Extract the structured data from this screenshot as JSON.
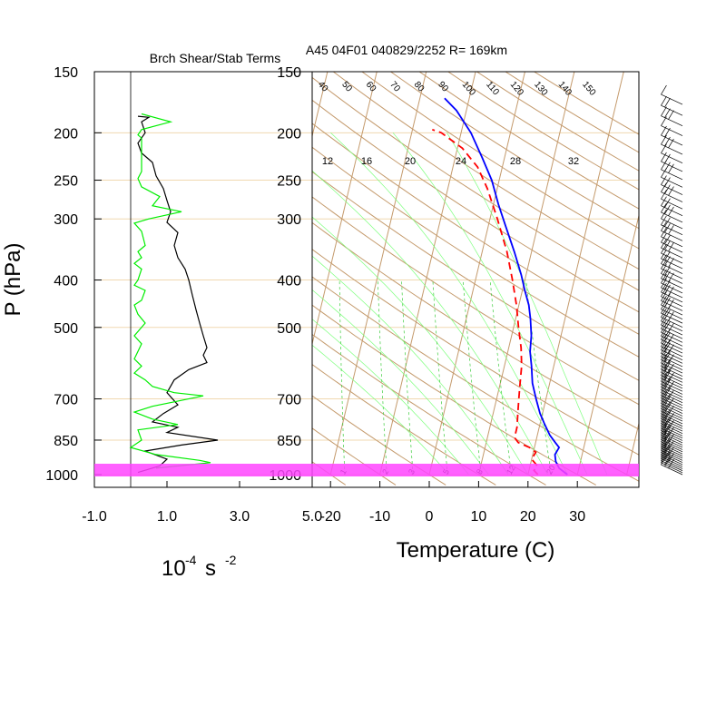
{
  "header": {
    "left_title": "Brch Shear/Stab Terms",
    "right_title": "A45 04F01 040829/2252 R= 169km"
  },
  "colors": {
    "isobar": "#f0d8b0",
    "dry_adiabat": "#c49a6c",
    "moist_adiabat": "#7cff7c",
    "mixing_ratio": "#3ccc3c",
    "temperature": "#0000ff",
    "dewpoint": "#ff0000",
    "shear_term": "#000000",
    "stability_term": "#00ee00",
    "boundary_layer": "#ff44ff"
  },
  "chart_data": [
    {
      "id": "shear-stability-profile",
      "type": "line",
      "title": "Brch Shear/Stab Terms",
      "xlabel": "10^-4 s^-2",
      "ylabel": "P (hPa)",
      "y_scale": "log",
      "y_reversed": true,
      "xlim": [
        -1.0,
        5.0
      ],
      "ylim": [
        1000,
        150
      ],
      "xticks": [
        "-1.0",
        "1.0",
        "3.0",
        "5.0"
      ],
      "yticks": [
        "150",
        "200",
        "250",
        "300",
        "400",
        "500",
        "700",
        "850",
        "1000"
      ],
      "ytick_values": [
        150,
        200,
        250,
        300,
        400,
        500,
        700,
        850,
        1000
      ],
      "zero_line": 0.0,
      "series": [
        {
          "key": "shear",
          "color": "black",
          "points": [
            [
              0.2,
              185
            ],
            [
              0.5,
              186
            ],
            [
              0.3,
              190
            ],
            [
              0.4,
              200
            ],
            [
              0.2,
              210
            ],
            [
              0.3,
              220
            ],
            [
              0.6,
              230
            ],
            [
              0.7,
              245
            ],
            [
              0.9,
              260
            ],
            [
              1.0,
              275
            ],
            [
              1.1,
              290
            ],
            [
              1.0,
              305
            ],
            [
              1.3,
              320
            ],
            [
              1.2,
              340
            ],
            [
              1.3,
              360
            ],
            [
              1.5,
              380
            ],
            [
              1.6,
              400
            ],
            [
              1.7,
              430
            ],
            [
              1.8,
              460
            ],
            [
              1.9,
              490
            ],
            [
              2.0,
              520
            ],
            [
              2.1,
              550
            ],
            [
              2.0,
              570
            ],
            [
              2.1,
              590
            ],
            [
              1.6,
              610
            ],
            [
              1.2,
              640
            ],
            [
              1.0,
              680
            ],
            [
              1.3,
              720
            ],
            [
              0.9,
              750
            ],
            [
              0.6,
              780
            ],
            [
              1.3,
              800
            ],
            [
              1.0,
              820
            ],
            [
              2.4,
              850
            ],
            [
              1.4,
              870
            ],
            [
              0.4,
              895
            ],
            [
              1.0,
              930
            ],
            [
              0.8,
              960
            ],
            [
              0.2,
              990
            ]
          ]
        },
        {
          "key": "stability",
          "color": "green",
          "points": [
            [
              0.3,
              183
            ],
            [
              1.1,
              190
            ],
            [
              0.3,
              197
            ],
            [
              0.2,
              202
            ],
            [
              0.3,
              205
            ],
            [
              0.3,
              240
            ],
            [
              0.2,
              248
            ],
            [
              0.3,
              258
            ],
            [
              0.8,
              270
            ],
            [
              0.6,
              282
            ],
            [
              1.4,
              290
            ],
            [
              0.5,
              300
            ],
            [
              0.1,
              306
            ],
            [
              0.3,
              318
            ],
            [
              0.4,
              340
            ],
            [
              0.2,
              350
            ],
            [
              0.3,
              360
            ],
            [
              0.1,
              370
            ],
            [
              0.3,
              380
            ],
            [
              0.2,
              400
            ],
            [
              0.1,
              410
            ],
            [
              0.4,
              420
            ],
            [
              0.3,
              440
            ],
            [
              0.1,
              450
            ],
            [
              0.2,
              470
            ],
            [
              0.4,
              490
            ],
            [
              0.1,
              520
            ],
            [
              0.3,
              540
            ],
            [
              0.2,
              560
            ],
            [
              0.1,
              580
            ],
            [
              0.3,
              600
            ],
            [
              0.1,
              620
            ],
            [
              0.4,
              640
            ],
            [
              0.6,
              660
            ],
            [
              1.2,
              680
            ],
            [
              2.0,
              690
            ],
            [
              1.2,
              710
            ],
            [
              0.6,
              725
            ],
            [
              0.1,
              745
            ],
            [
              0.6,
              770
            ],
            [
              1.3,
              790
            ],
            [
              0.2,
              810
            ],
            [
              0.3,
              850
            ],
            [
              0.0,
              880
            ],
            [
              0.7,
              910
            ],
            [
              1.9,
              935
            ],
            [
              2.2,
              945
            ],
            [
              0.7,
              970
            ]
          ]
        }
      ]
    },
    {
      "id": "skewt-logp",
      "type": "line",
      "title": "A45 04F01 040829/2252 R= 169km",
      "xlabel": "Temperature (C)",
      "y_scale": "log",
      "y_reversed": true,
      "xlim": [
        -23,
        42
      ],
      "ylim": [
        1000,
        150
      ],
      "xticks": [
        "-20",
        "-10",
        "0",
        "10",
        "20",
        "30"
      ],
      "xtick_values": [
        -20,
        -10,
        0,
        10,
        20,
        30
      ],
      "yticks": [
        "150",
        "200",
        "250",
        "300",
        "400",
        "500",
        "700",
        "850",
        "1000"
      ],
      "ytick_values": [
        150,
        200,
        250,
        300,
        400,
        500,
        700,
        850,
        1000
      ],
      "dry_adiabat_labels_theta_c": [
        "40",
        "50",
        "60",
        "70",
        "80",
        "90",
        "100",
        "110",
        "120",
        "130",
        "140",
        "150"
      ],
      "moist_adiabat_labels": [
        "12",
        "16",
        "20",
        "24",
        "28",
        "32"
      ],
      "mixing_ratio_labels": [
        "1",
        "2",
        "3",
        "5",
        "8",
        "12",
        "20"
      ],
      "boundary_layer_band_hpa": [
        950,
        1000
      ],
      "series": [
        {
          "key": "temperature",
          "color": "blue",
          "points": [
            [
              28,
              1000
            ],
            [
              26,
              970
            ],
            [
              25,
              940
            ],
            [
              24.5,
              910
            ],
            [
              25,
              880
            ],
            [
              24,
              860
            ],
            [
              22.5,
              830
            ],
            [
              21,
              790
            ],
            [
              19.5,
              750
            ],
            [
              18,
              700
            ],
            [
              16.5,
              650
            ],
            [
              15.5,
              600
            ],
            [
              14.5,
              560
            ],
            [
              14,
              520
            ],
            [
              13,
              480
            ],
            [
              12,
              450
            ],
            [
              10.5,
              420
            ],
            [
              9,
              390
            ],
            [
              6.5,
              350
            ],
            [
              3.5,
              310
            ],
            [
              1,
              280
            ],
            [
              -1.5,
              250
            ],
            [
              -4.5,
              225
            ],
            [
              -8,
              200
            ],
            [
              -12,
              180
            ],
            [
              -15,
              170
            ]
          ]
        },
        {
          "key": "dewpoint",
          "color": "red",
          "dashed": true,
          "points": [
            [
              22,
              1000
            ],
            [
              21,
              980
            ],
            [
              21.5,
              960
            ],
            [
              20,
              930
            ],
            [
              20.5,
              900
            ],
            [
              19,
              880
            ],
            [
              16.5,
              860
            ],
            [
              15.5,
              840
            ],
            [
              15.5,
              800
            ],
            [
              15,
              750
            ],
            [
              14.5,
              700
            ],
            [
              14,
              650
            ],
            [
              13.5,
              600
            ],
            [
              12.5,
              550
            ],
            [
              11,
              500
            ],
            [
              9.5,
              450
            ],
            [
              7.5,
              400
            ],
            [
              5,
              350
            ],
            [
              1.5,
              300
            ],
            [
              -2,
              260
            ],
            [
              -5,
              235
            ],
            [
              -9,
              215
            ],
            [
              -14,
              200
            ],
            [
              -16,
              197
            ]
          ]
        }
      ]
    }
  ],
  "wind_barbs": {
    "count": 90,
    "pressure_top": 175,
    "pressure_bottom": 1000
  }
}
